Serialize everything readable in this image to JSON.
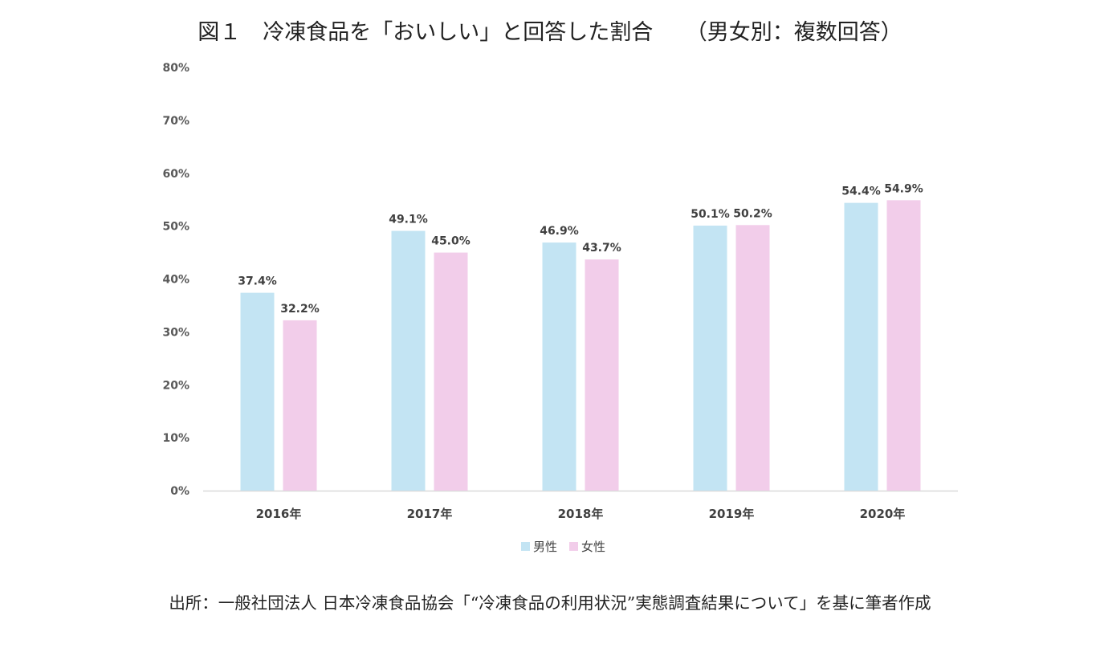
{
  "title": "図１　冷凍食品を「おいしい」と回答した割合　　（男女別：複数回答）",
  "source": "出所：一般社団法人 日本冷凍食品協会「“冷凍食品の利用状況”実態調査結果について」を基に筆者作成",
  "colors": {
    "male": "#c3e4f3",
    "female": "#f2cdea",
    "axis": "#d9d9d9"
  },
  "chart_data": {
    "type": "bar",
    "categories": [
      "2016年",
      "2017年",
      "2018年",
      "2019年",
      "2020年"
    ],
    "series": [
      {
        "name": "男性",
        "values": [
          37.4,
          49.1,
          46.9,
          50.1,
          54.4
        ],
        "labels": [
          "37.4%",
          "49.1%",
          "46.9%",
          "50.1%",
          "54.4%"
        ]
      },
      {
        "name": "女性",
        "values": [
          32.2,
          45.0,
          43.7,
          50.2,
          54.9
        ],
        "labels": [
          "32.2%",
          "45.0%",
          "43.7%",
          "50.2%",
          "54.9%"
        ]
      }
    ],
    "ylim": [
      0,
      80
    ],
    "yticks": [
      "0%",
      "10%",
      "20%",
      "30%",
      "40%",
      "50%",
      "60%",
      "70%",
      "80%"
    ],
    "grid": false,
    "legend_position": "bottom"
  }
}
